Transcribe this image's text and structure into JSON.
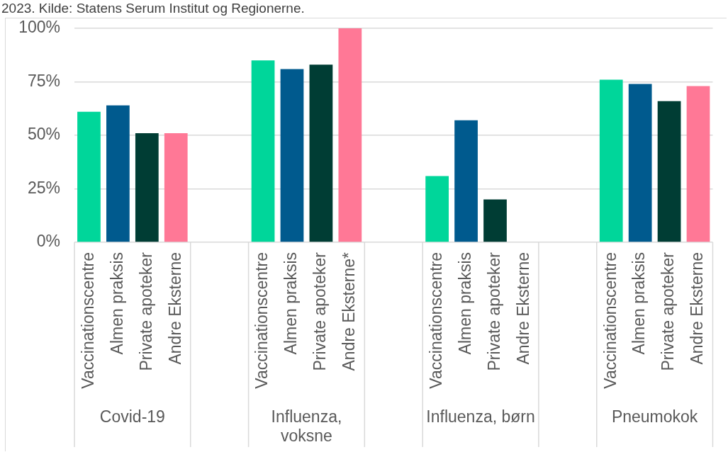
{
  "chart_data": {
    "type": "bar",
    "title": "2023. Kilde: Statens Serum Institut og Regionerne.",
    "categories": [
      "Vaccinationscentre",
      "Almen praksis",
      "Private apoteker",
      "Andre Eksterne",
      null,
      null,
      "Vaccinationscentre",
      "Almen praksis",
      "Private apoteker",
      "Andre Eksterne*",
      null,
      null,
      "Vaccinationscentre",
      "Almen praksis",
      "Private apoteker",
      "Andre Eksterne",
      null,
      null,
      "Vaccinationscentre",
      "Almen praksis",
      "Private apoteker",
      "Andre Eksterne"
    ],
    "values": [
      61,
      64,
      51,
      51,
      null,
      null,
      85,
      81,
      83,
      100,
      null,
      null,
      31,
      57,
      20,
      null,
      null,
      null,
      76,
      74,
      66,
      73
    ],
    "colors": [
      "#00d69a",
      "#005a8e",
      "#003d34",
      "#ff7896",
      null,
      null,
      "#00d69a",
      "#005a8e",
      "#003d34",
      "#ff7896",
      null,
      null,
      "#00d69a",
      "#005a8e",
      "#003d34",
      "#ff7896",
      null,
      null,
      "#00d69a",
      "#005a8e",
      "#003d34",
      "#ff7896"
    ],
    "annotations": [
      "Covid-19",
      "Influenza, voksne",
      "Influenza, børn",
      "Pneumokok"
    ],
    "ylim": [
      0,
      100
    ],
    "yticks": [
      {
        "value": 0,
        "label": "0%"
      },
      {
        "value": 25,
        "label": "25%"
      },
      {
        "value": 50,
        "label": "50%"
      },
      {
        "value": 75,
        "label": "75%"
      },
      {
        "value": 100,
        "label": "100%"
      }
    ],
    "grid": "y"
  }
}
